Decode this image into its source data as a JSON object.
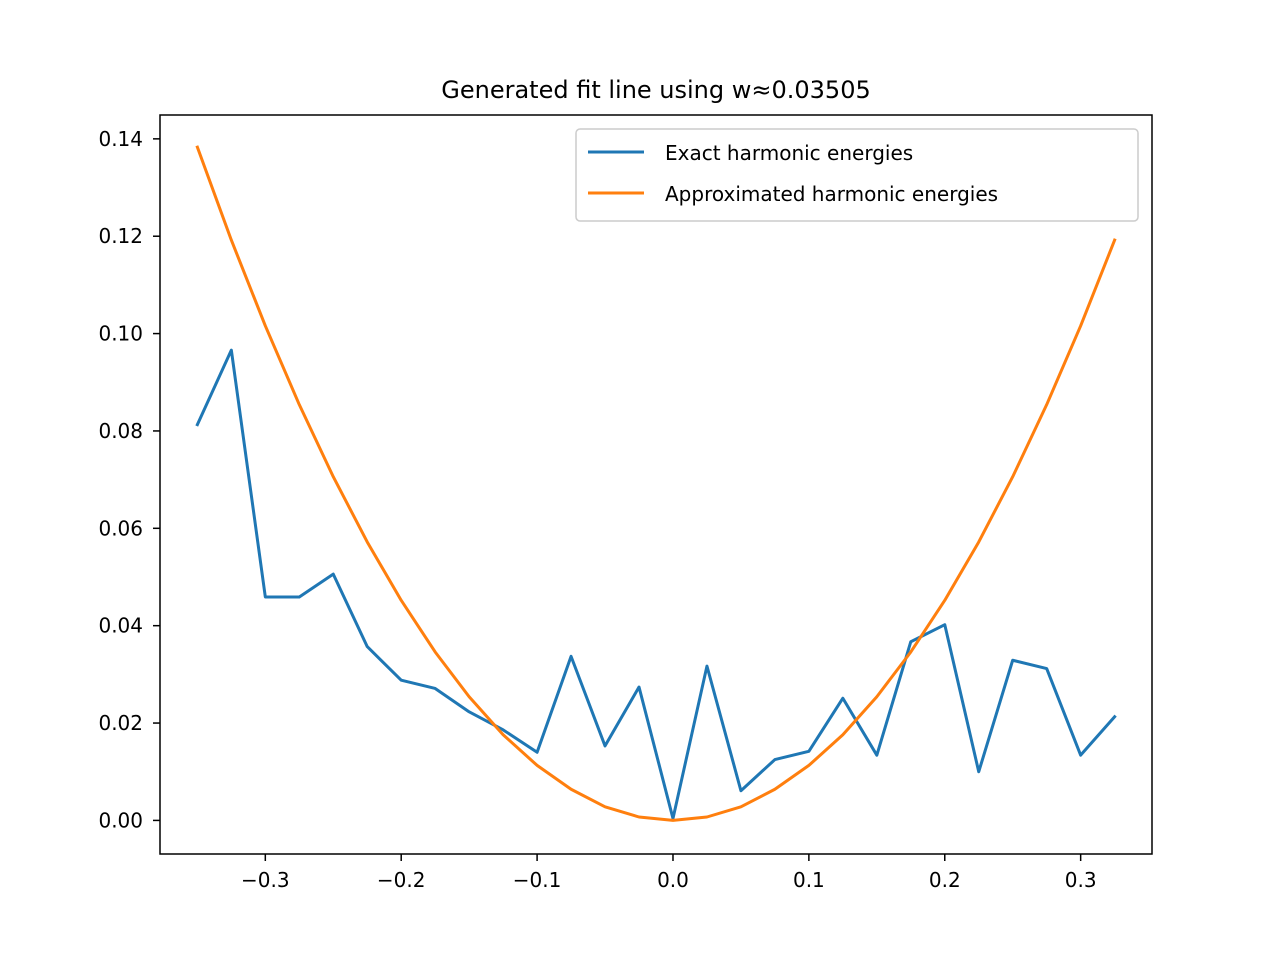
{
  "chart_data": {
    "type": "line",
    "title": "Generated fit line using w≈0.03505",
    "xlabel": "",
    "ylabel": "",
    "xlim": [
      -0.3775,
      0.3525
    ],
    "ylim": [
      -0.0069,
      0.1449
    ],
    "x_ticks": [
      -0.3,
      -0.2,
      -0.1,
      0.0,
      0.1,
      0.2,
      0.3
    ],
    "x_tick_labels": [
      "−0.3",
      "−0.2",
      "−0.1",
      "0.0",
      "0.1",
      "0.2",
      "0.3"
    ],
    "y_ticks": [
      0.0,
      0.02,
      0.04,
      0.06,
      0.08,
      0.1,
      0.12,
      0.14
    ],
    "y_tick_labels": [
      "0.00",
      "0.02",
      "0.04",
      "0.06",
      "0.08",
      "0.10",
      "0.12",
      "0.14"
    ],
    "grid": false,
    "legend_position": "top-right",
    "x": [
      -0.35,
      -0.325,
      -0.3,
      -0.275,
      -0.25,
      -0.225,
      -0.2,
      -0.175,
      -0.15,
      -0.125,
      -0.1,
      -0.075,
      -0.05,
      -0.025,
      0.0,
      0.025,
      0.05,
      0.075,
      0.1,
      0.125,
      0.15,
      0.175,
      0.2,
      0.225,
      0.25,
      0.275,
      0.3,
      0.325
    ],
    "series": [
      {
        "name": "Exact harmonic energies",
        "color": "#1f77b4",
        "values": [
          0.0813,
          0.0966,
          0.0459,
          0.0459,
          0.0506,
          0.0357,
          0.0288,
          0.0271,
          0.0223,
          0.0186,
          0.014,
          0.0337,
          0.0153,
          0.0274,
          0.0004,
          0.0317,
          0.0061,
          0.0125,
          0.0142,
          0.0251,
          0.0134,
          0.0367,
          0.0402,
          0.01,
          0.0329,
          0.0312,
          0.0134,
          0.0213
        ]
      },
      {
        "name": "Approximated harmonic energies",
        "color": "#ff7f0e",
        "values": [
          0.1383,
          0.1192,
          0.1016,
          0.0854,
          0.0706,
          0.0572,
          0.0452,
          0.0346,
          0.0254,
          0.0176,
          0.0113,
          0.0064,
          0.0028,
          0.0007,
          0.0,
          0.0007,
          0.0028,
          0.0064,
          0.0113,
          0.0176,
          0.0254,
          0.0346,
          0.0452,
          0.0572,
          0.0706,
          0.0854,
          0.1016,
          0.1192
        ]
      }
    ]
  }
}
